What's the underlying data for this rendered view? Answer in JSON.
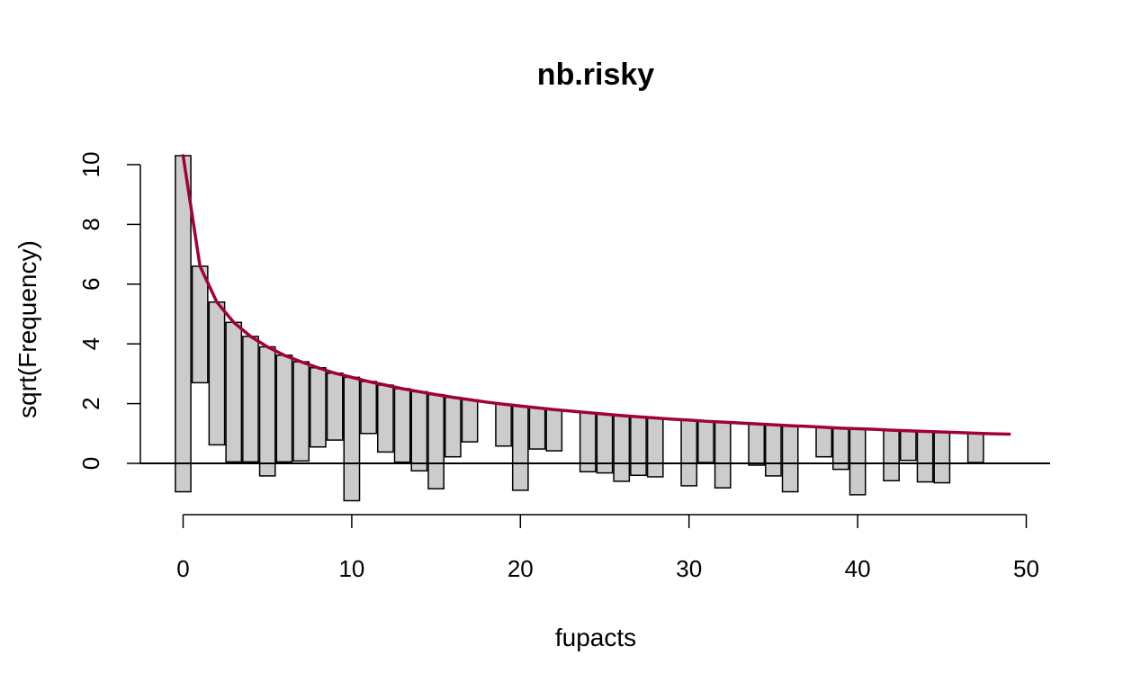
{
  "chart_data": {
    "type": "bar",
    "subtype": "hanging rootogram",
    "title": "nb.risky",
    "xlabel": "fupacts",
    "ylabel": "sqrt(Frequency)",
    "xlim": [
      0,
      50
    ],
    "ylim": [
      -1.3,
      10.3
    ],
    "x_ticks": [
      0,
      10,
      20,
      30,
      40,
      50
    ],
    "y_ticks": [
      0,
      2,
      4,
      6,
      8,
      10
    ],
    "grid": false,
    "bar_color": "#cccccc",
    "curve_color": "#a0003c",
    "bars": [
      {
        "x": 0,
        "top": 10.3,
        "bottom": -0.95
      },
      {
        "x": 1,
        "top": 6.6,
        "bottom": 2.7
      },
      {
        "x": 2,
        "top": 5.4,
        "bottom": 0.62
      },
      {
        "x": 3,
        "top": 4.72,
        "bottom": 0.05
      },
      {
        "x": 4,
        "top": 4.25,
        "bottom": 0.05
      },
      {
        "x": 5,
        "top": 3.9,
        "bottom": -0.42
      },
      {
        "x": 6,
        "top": 3.62,
        "bottom": 0.05
      },
      {
        "x": 7,
        "top": 3.4,
        "bottom": 0.08
      },
      {
        "x": 8,
        "top": 3.2,
        "bottom": 0.55
      },
      {
        "x": 9,
        "top": 3.02,
        "bottom": 0.78
      },
      {
        "x": 10,
        "top": 2.88,
        "bottom": -1.25
      },
      {
        "x": 11,
        "top": 2.74,
        "bottom": 1.0
      },
      {
        "x": 12,
        "top": 2.62,
        "bottom": 0.38
      },
      {
        "x": 13,
        "top": 2.5,
        "bottom": 0.04
      },
      {
        "x": 14,
        "top": 2.4,
        "bottom": -0.25
      },
      {
        "x": 15,
        "top": 2.3,
        "bottom": -0.85
      },
      {
        "x": 16,
        "top": 2.21,
        "bottom": 0.22
      },
      {
        "x": 17,
        "top": 2.13,
        "bottom": 0.72
      },
      {
        "x": 19,
        "top": 1.98,
        "bottom": 0.58
      },
      {
        "x": 20,
        "top": 1.92,
        "bottom": -0.9
      },
      {
        "x": 21,
        "top": 1.86,
        "bottom": 0.48
      },
      {
        "x": 22,
        "top": 1.8,
        "bottom": 0.42
      },
      {
        "x": 24,
        "top": 1.7,
        "bottom": -0.28
      },
      {
        "x": 25,
        "top": 1.65,
        "bottom": -0.32
      },
      {
        "x": 26,
        "top": 1.6,
        "bottom": -0.6
      },
      {
        "x": 27,
        "top": 1.56,
        "bottom": -0.4
      },
      {
        "x": 28,
        "top": 1.52,
        "bottom": -0.45
      },
      {
        "x": 30,
        "top": 1.45,
        "bottom": -0.75
      },
      {
        "x": 31,
        "top": 1.41,
        "bottom": 0.03
      },
      {
        "x": 32,
        "top": 1.38,
        "bottom": -0.82
      },
      {
        "x": 34,
        "top": 1.32,
        "bottom": -0.06
      },
      {
        "x": 35,
        "top": 1.29,
        "bottom": -0.42
      },
      {
        "x": 36,
        "top": 1.26,
        "bottom": -0.95
      },
      {
        "x": 38,
        "top": 1.21,
        "bottom": 0.22
      },
      {
        "x": 39,
        "top": 1.18,
        "bottom": -0.2
      },
      {
        "x": 40,
        "top": 1.16,
        "bottom": -1.05
      },
      {
        "x": 42,
        "top": 1.11,
        "bottom": -0.58
      },
      {
        "x": 43,
        "top": 1.09,
        "bottom": 0.1
      },
      {
        "x": 44,
        "top": 1.07,
        "bottom": -0.62
      },
      {
        "x": 45,
        "top": 1.05,
        "bottom": -0.65
      },
      {
        "x": 47,
        "top": 1.01,
        "bottom": 0.03
      }
    ],
    "expected_curve": [
      {
        "x": 0,
        "y": 10.3
      },
      {
        "x": 1,
        "y": 6.6
      },
      {
        "x": 2,
        "y": 5.4
      },
      {
        "x": 3,
        "y": 4.72
      },
      {
        "x": 4,
        "y": 4.25
      },
      {
        "x": 5,
        "y": 3.9
      },
      {
        "x": 6,
        "y": 3.62
      },
      {
        "x": 7,
        "y": 3.4
      },
      {
        "x": 8,
        "y": 3.2
      },
      {
        "x": 9,
        "y": 3.02
      },
      {
        "x": 10,
        "y": 2.88
      },
      {
        "x": 11,
        "y": 2.74
      },
      {
        "x": 12,
        "y": 2.62
      },
      {
        "x": 13,
        "y": 2.5
      },
      {
        "x": 14,
        "y": 2.4
      },
      {
        "x": 15,
        "y": 2.3
      },
      {
        "x": 16,
        "y": 2.21
      },
      {
        "x": 17,
        "y": 2.13
      },
      {
        "x": 18,
        "y": 2.05
      },
      {
        "x": 19,
        "y": 1.98
      },
      {
        "x": 20,
        "y": 1.92
      },
      {
        "x": 21,
        "y": 1.86
      },
      {
        "x": 22,
        "y": 1.8
      },
      {
        "x": 23,
        "y": 1.75
      },
      {
        "x": 24,
        "y": 1.7
      },
      {
        "x": 25,
        "y": 1.65
      },
      {
        "x": 26,
        "y": 1.6
      },
      {
        "x": 27,
        "y": 1.56
      },
      {
        "x": 28,
        "y": 1.52
      },
      {
        "x": 29,
        "y": 1.48
      },
      {
        "x": 30,
        "y": 1.45
      },
      {
        "x": 31,
        "y": 1.41
      },
      {
        "x": 32,
        "y": 1.38
      },
      {
        "x": 33,
        "y": 1.35
      },
      {
        "x": 34,
        "y": 1.32
      },
      {
        "x": 35,
        "y": 1.29
      },
      {
        "x": 36,
        "y": 1.26
      },
      {
        "x": 37,
        "y": 1.24
      },
      {
        "x": 38,
        "y": 1.21
      },
      {
        "x": 39,
        "y": 1.18
      },
      {
        "x": 40,
        "y": 1.16
      },
      {
        "x": 41,
        "y": 1.14
      },
      {
        "x": 42,
        "y": 1.11
      },
      {
        "x": 43,
        "y": 1.09
      },
      {
        "x": 44,
        "y": 1.07
      },
      {
        "x": 45,
        "y": 1.05
      },
      {
        "x": 46,
        "y": 1.03
      },
      {
        "x": 47,
        "y": 1.01
      },
      {
        "x": 48,
        "y": 0.99
      },
      {
        "x": 49,
        "y": 0.98
      }
    ]
  }
}
